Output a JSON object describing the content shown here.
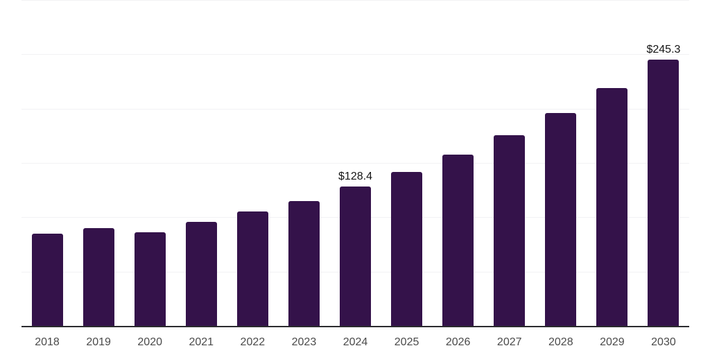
{
  "chart_data": {
    "type": "bar",
    "title": "",
    "xlabel": "",
    "ylabel": "",
    "categories": [
      "2018",
      "2019",
      "2020",
      "2021",
      "2022",
      "2023",
      "2024",
      "2025",
      "2026",
      "2027",
      "2028",
      "2029",
      "2030"
    ],
    "values": [
      85.0,
      90.1,
      86.3,
      95.9,
      105.5,
      115.0,
      128.4,
      141.9,
      157.8,
      175.7,
      196.2,
      219.2,
      245.3
    ],
    "data_labels": [
      {
        "category": "2024",
        "text": "$128.4"
      },
      {
        "category": "2030",
        "text": "$245.3"
      }
    ],
    "ylim": [
      0,
      300
    ],
    "gridline_step": 50,
    "grid": true,
    "y_axis_labels_visible": false,
    "legend": null,
    "colors": {
      "bar": "#34124a",
      "axis_line": "#2b2b2e",
      "gridline": "#f2f2f4",
      "x_tick_label": "#4a4a4a",
      "data_label": "#141414",
      "background": "#ffffff"
    }
  }
}
